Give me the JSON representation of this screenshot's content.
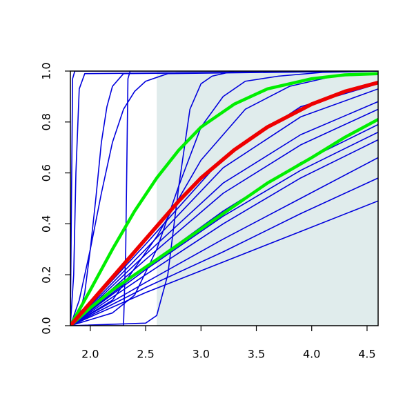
{
  "chart_data": {
    "type": "line",
    "xlim": [
      1.82,
      4.6
    ],
    "ylim": [
      0,
      1
    ],
    "xticks": [
      {
        "value": 2,
        "label": "2.0"
      },
      2.5,
      {
        "value": 3,
        "label": "3.0"
      },
      3.5,
      {
        "value": 4,
        "label": "4.0"
      },
      4.5
    ],
    "yticks": [
      {
        "value": 0,
        "label": "0.0"
      },
      0.2,
      0.4,
      0.6,
      0.8,
      {
        "value": 1,
        "label": "1.0"
      }
    ],
    "shaded_region": {
      "x": [
        2.6,
        4.6
      ],
      "y": [
        0,
        1
      ],
      "color": "#e0ecec"
    },
    "series": [
      {
        "color": "#0000dd",
        "line_width": 1.6,
        "x": [
          1.82,
          1.83,
          1.84,
          1.86,
          4.6
        ],
        "values": [
          0,
          0.5,
          0.97,
          1,
          1
        ]
      },
      {
        "color": "#0000dd",
        "line_width": 1.6,
        "x": [
          1.82,
          1.85,
          1.87,
          1.9,
          1.95,
          4.6
        ],
        "values": [
          0,
          0.2,
          0.6,
          0.93,
          0.99,
          1
        ]
      },
      {
        "color": "#0000dd",
        "line_width": 1.6,
        "x": [
          1.82,
          1.9,
          1.95,
          2.0,
          2.05,
          2.1,
          2.15,
          2.2,
          2.3,
          4.6
        ],
        "values": [
          0,
          0.04,
          0.13,
          0.3,
          0.5,
          0.72,
          0.86,
          0.94,
          0.99,
          1
        ]
      },
      {
        "color": "#0000dd",
        "line_width": 1.6,
        "x": [
          1.82,
          1.9,
          2.0,
          2.1,
          2.2,
          2.3,
          2.4,
          2.5,
          2.7,
          4.6
        ],
        "values": [
          0,
          0.1,
          0.3,
          0.52,
          0.72,
          0.85,
          0.92,
          0.96,
          0.99,
          1
        ]
      },
      {
        "color": "#0000dd",
        "line_width": 1.6,
        "x": [
          1.82,
          2.3,
          2.32,
          2.34,
          2.36,
          4.6
        ],
        "values": [
          0,
          0,
          0.3,
          0.97,
          1,
          1
        ]
      },
      {
        "color": "#0000dd",
        "line_width": 1.6,
        "x": [
          1.82,
          2.5,
          2.6,
          2.7,
          2.8,
          2.9,
          3.0,
          3.1,
          3.3,
          4.6
        ],
        "values": [
          0,
          0.01,
          0.04,
          0.2,
          0.55,
          0.85,
          0.95,
          0.98,
          1,
          1
        ]
      },
      {
        "color": "#0000dd",
        "line_width": 1.6,
        "x": [
          1.82,
          2.2,
          2.4,
          2.6,
          2.8,
          3.0,
          3.2,
          3.4,
          3.7,
          4.1,
          4.6
        ],
        "values": [
          0,
          0.05,
          0.12,
          0.3,
          0.55,
          0.78,
          0.9,
          0.96,
          0.98,
          0.995,
          1
        ]
      },
      {
        "color": "#0000dd",
        "line_width": 1.6,
        "x": [
          1.82,
          2.2,
          2.6,
          3.0,
          3.4,
          3.8,
          4.2,
          4.6
        ],
        "values": [
          0,
          0.1,
          0.35,
          0.65,
          0.85,
          0.94,
          0.98,
          0.99
        ]
      },
      {
        "color": "#0000dd",
        "line_width": 1.6,
        "x": [
          1.82,
          2.5,
          3.2,
          3.9,
          4.6
        ],
        "values": [
          0,
          0.13,
          0.25,
          0.37,
          0.49
        ]
      },
      {
        "color": "#0000dd",
        "line_width": 1.6,
        "x": [
          1.82,
          2.5,
          3.2,
          3.9,
          4.6
        ],
        "values": [
          0,
          0.15,
          0.29,
          0.44,
          0.58
        ]
      },
      {
        "color": "#0000dd",
        "line_width": 1.6,
        "x": [
          1.82,
          2.5,
          3.2,
          3.9,
          4.6
        ],
        "values": [
          0,
          0.17,
          0.34,
          0.5,
          0.66
        ]
      },
      {
        "color": "#0000dd",
        "line_width": 1.6,
        "x": [
          1.82,
          2.5,
          3.2,
          3.9,
          4.6
        ],
        "values": [
          0,
          0.2,
          0.4,
          0.58,
          0.73
        ]
      },
      {
        "color": "#0000dd",
        "line_width": 1.6,
        "x": [
          1.82,
          2.5,
          3.2,
          3.9,
          4.6
        ],
        "values": [
          0,
          0.22,
          0.43,
          0.61,
          0.76
        ]
      },
      {
        "color": "#0000dd",
        "line_width": 1.6,
        "x": [
          1.82,
          2.5,
          3.2,
          3.9,
          4.6
        ],
        "values": [
          0,
          0.23,
          0.45,
          0.64,
          0.79
        ]
      },
      {
        "color": "#0000dd",
        "line_width": 1.6,
        "x": [
          1.82,
          2.5,
          3.2,
          3.9,
          4.6
        ],
        "values": [
          0,
          0.26,
          0.52,
          0.71,
          0.85
        ]
      },
      {
        "color": "#0000dd",
        "line_width": 1.6,
        "x": [
          1.82,
          2.5,
          3.2,
          3.9,
          4.6
        ],
        "values": [
          0,
          0.28,
          0.56,
          0.75,
          0.88
        ]
      },
      {
        "color": "#0000dd",
        "line_width": 1.6,
        "x": [
          1.82,
          2.5,
          3.2,
          3.9,
          4.6
        ],
        "values": [
          0,
          0.3,
          0.62,
          0.82,
          0.93
        ]
      },
      {
        "color": "#0000dd",
        "line_width": 1.6,
        "x": [
          1.82,
          2.5,
          3.2,
          3.9,
          4.6
        ],
        "values": [
          0,
          0.32,
          0.66,
          0.86,
          0.95
        ]
      },
      {
        "color": "#00ee00",
        "line_width": 4.5,
        "x": [
          1.82,
          2.0,
          2.2,
          2.4,
          2.6,
          2.8,
          3.0,
          3.3,
          3.6,
          4.0,
          4.3,
          4.6
        ],
        "values": [
          0,
          0.07,
          0.14,
          0.2,
          0.26,
          0.32,
          0.38,
          0.47,
          0.56,
          0.66,
          0.74,
          0.81
        ]
      },
      {
        "color": "#00ee00",
        "line_width": 4.5,
        "x": [
          1.82,
          2.0,
          2.2,
          2.4,
          2.6,
          2.8,
          3.0,
          3.3,
          3.6,
          4.0,
          4.3,
          4.6
        ],
        "values": [
          0,
          0.14,
          0.3,
          0.45,
          0.58,
          0.69,
          0.78,
          0.87,
          0.93,
          0.97,
          0.985,
          0.99
        ]
      },
      {
        "color": "#ee0000",
        "line_width": 5.5,
        "x": [
          1.82,
          2.0,
          2.2,
          2.4,
          2.6,
          2.8,
          3.0,
          3.3,
          3.6,
          4.0,
          4.3,
          4.6
        ],
        "values": [
          0,
          0.09,
          0.19,
          0.29,
          0.39,
          0.49,
          0.58,
          0.69,
          0.78,
          0.87,
          0.92,
          0.955
        ]
      }
    ]
  }
}
